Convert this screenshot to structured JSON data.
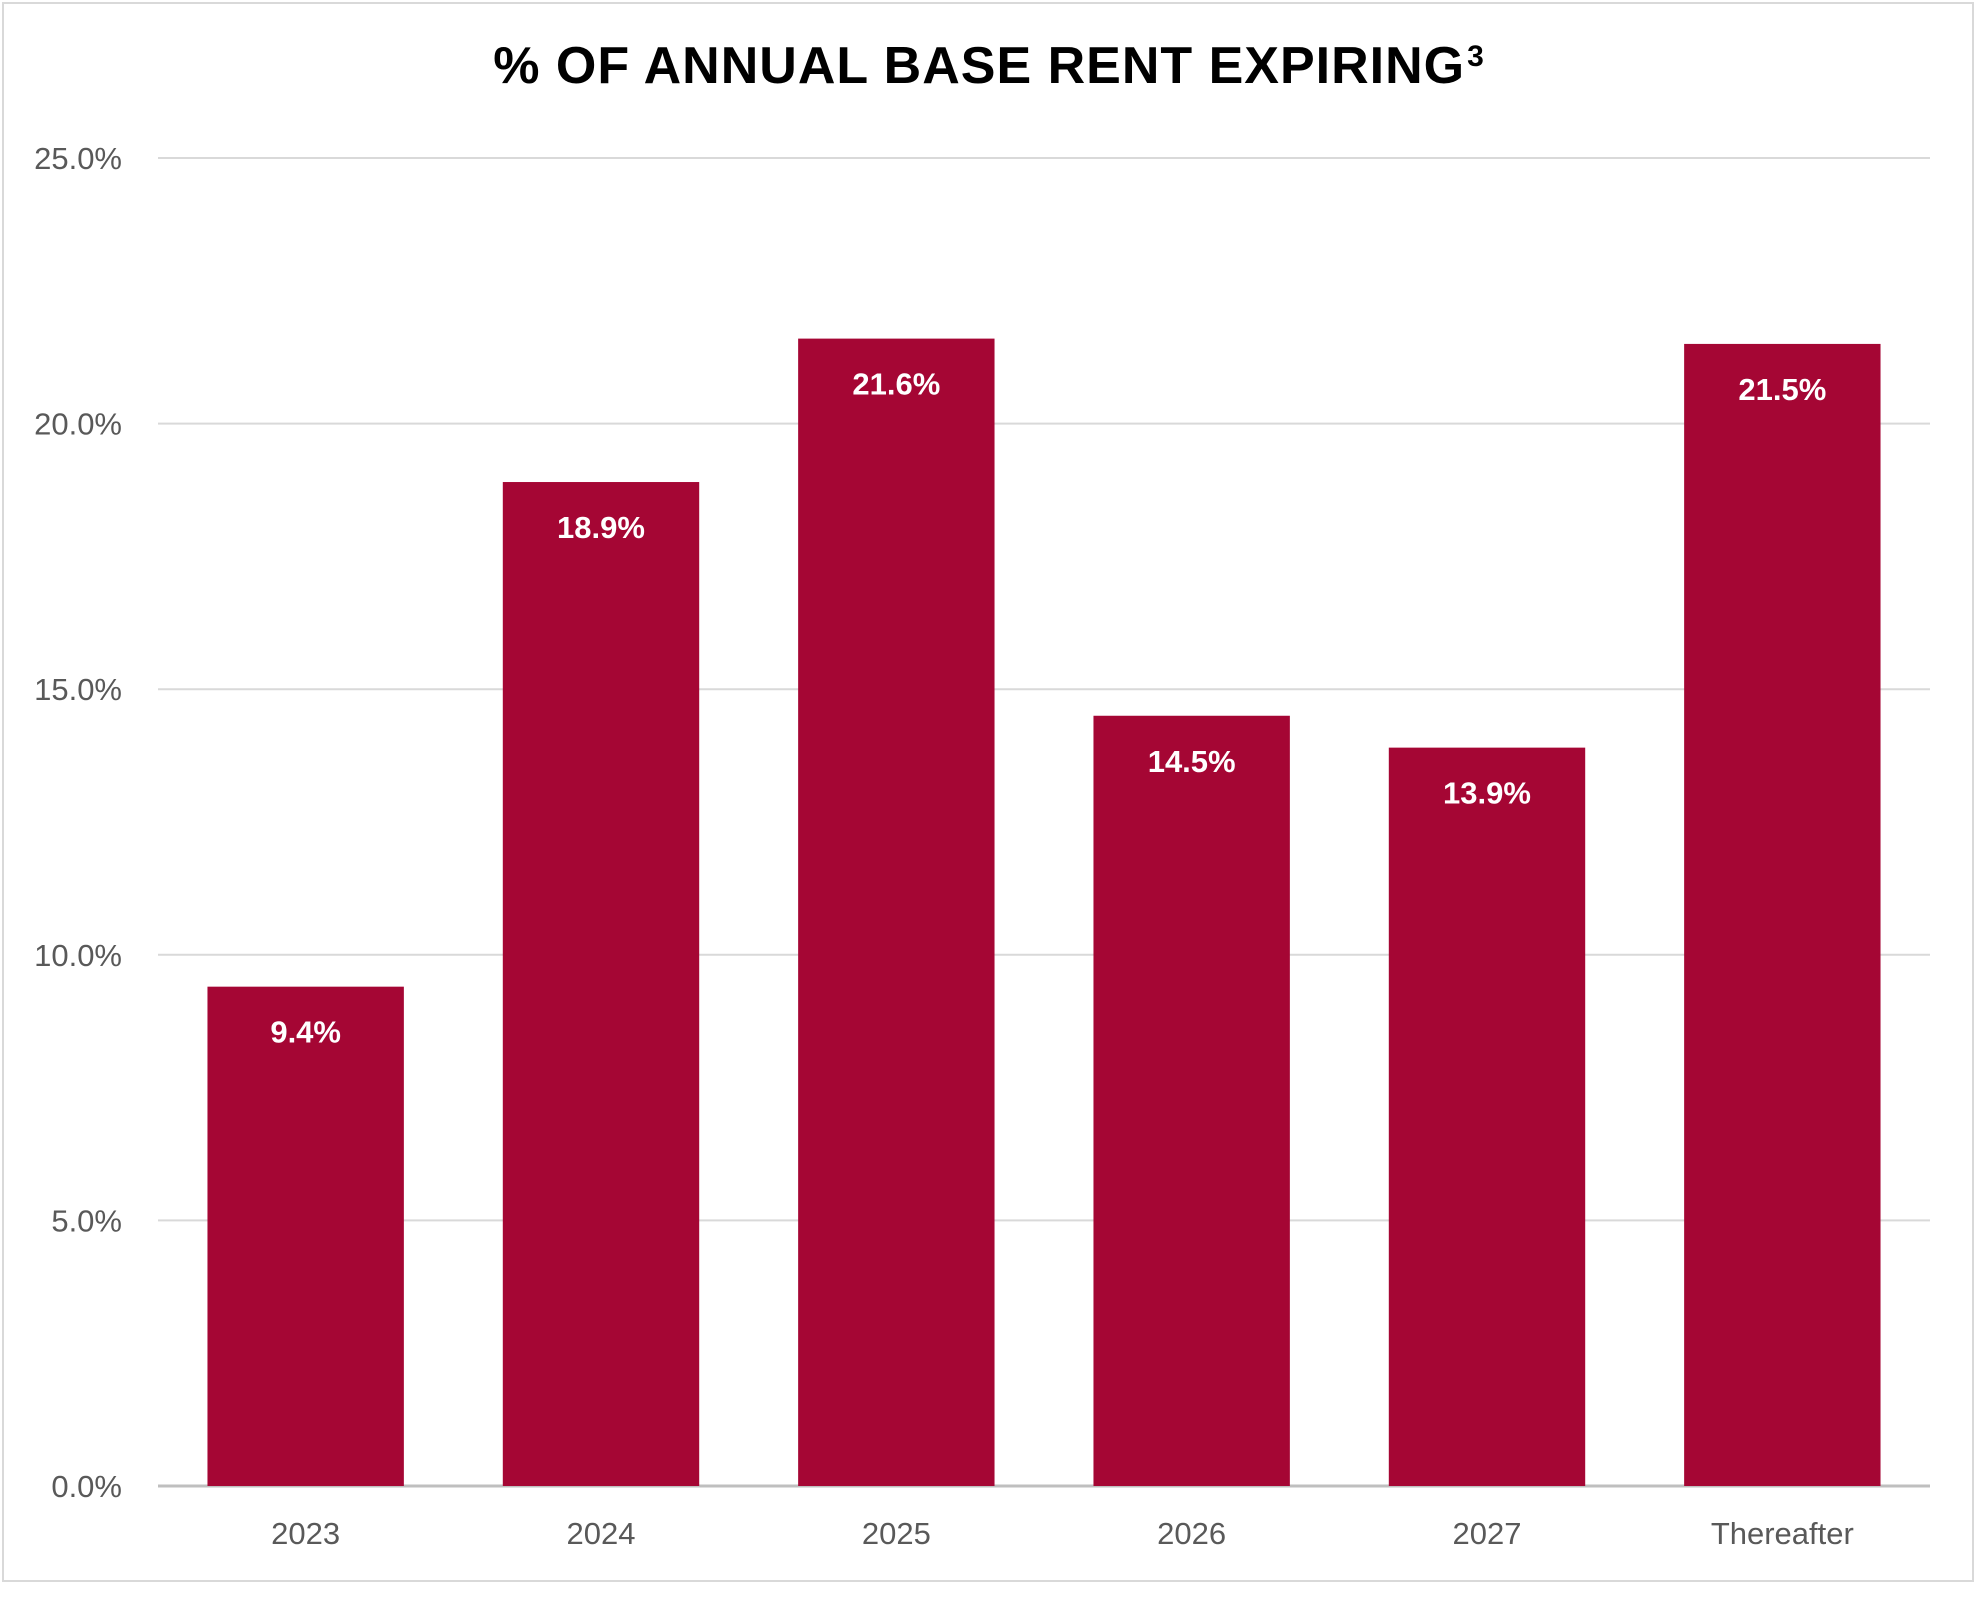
{
  "chart_data": {
    "type": "bar",
    "title": "% OF ANNUAL BASE RENT EXPIRING",
    "title_superscript": "3",
    "categories": [
      "2023",
      "2024",
      "2025",
      "2026",
      "2027",
      "Thereafter"
    ],
    "values": [
      9.4,
      18.9,
      21.6,
      14.5,
      13.9,
      21.5
    ],
    "data_labels": [
      "9.4%",
      "18.9%",
      "21.6%",
      "14.5%",
      "13.9%",
      "21.5%"
    ],
    "y_ticks": [
      0,
      5,
      10,
      15,
      20,
      25
    ],
    "y_tick_labels": [
      "0.0%",
      "5.0%",
      "10.0%",
      "15.0%",
      "20.0%",
      "25.0%"
    ],
    "ylim": [
      0,
      25
    ],
    "xlabel": "",
    "ylabel": "",
    "grid": true,
    "legend": "none",
    "colors": {
      "bar": "#a50634",
      "grid": "#d9d9d9",
      "axis": "#bfbfbf",
      "tick_text": "#595959",
      "data_label_text": "#ffffff"
    }
  }
}
